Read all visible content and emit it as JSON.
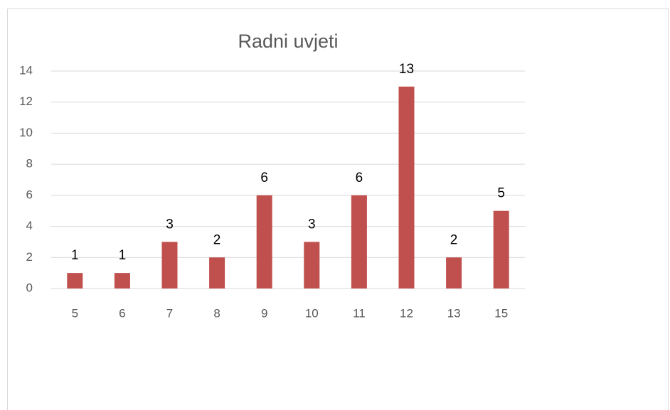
{
  "chart_data": {
    "type": "bar",
    "title": "Radni uvjeti",
    "categories": [
      "5",
      "6",
      "7",
      "8",
      "9",
      "10",
      "11",
      "12",
      "13",
      "15"
    ],
    "values": [
      1,
      1,
      3,
      2,
      6,
      3,
      6,
      13,
      2,
      5
    ],
    "color": "#c0504d",
    "ylim": [
      0,
      14
    ],
    "yticks": [
      0,
      2,
      4,
      6,
      8,
      10,
      12,
      14
    ],
    "grid": true
  }
}
